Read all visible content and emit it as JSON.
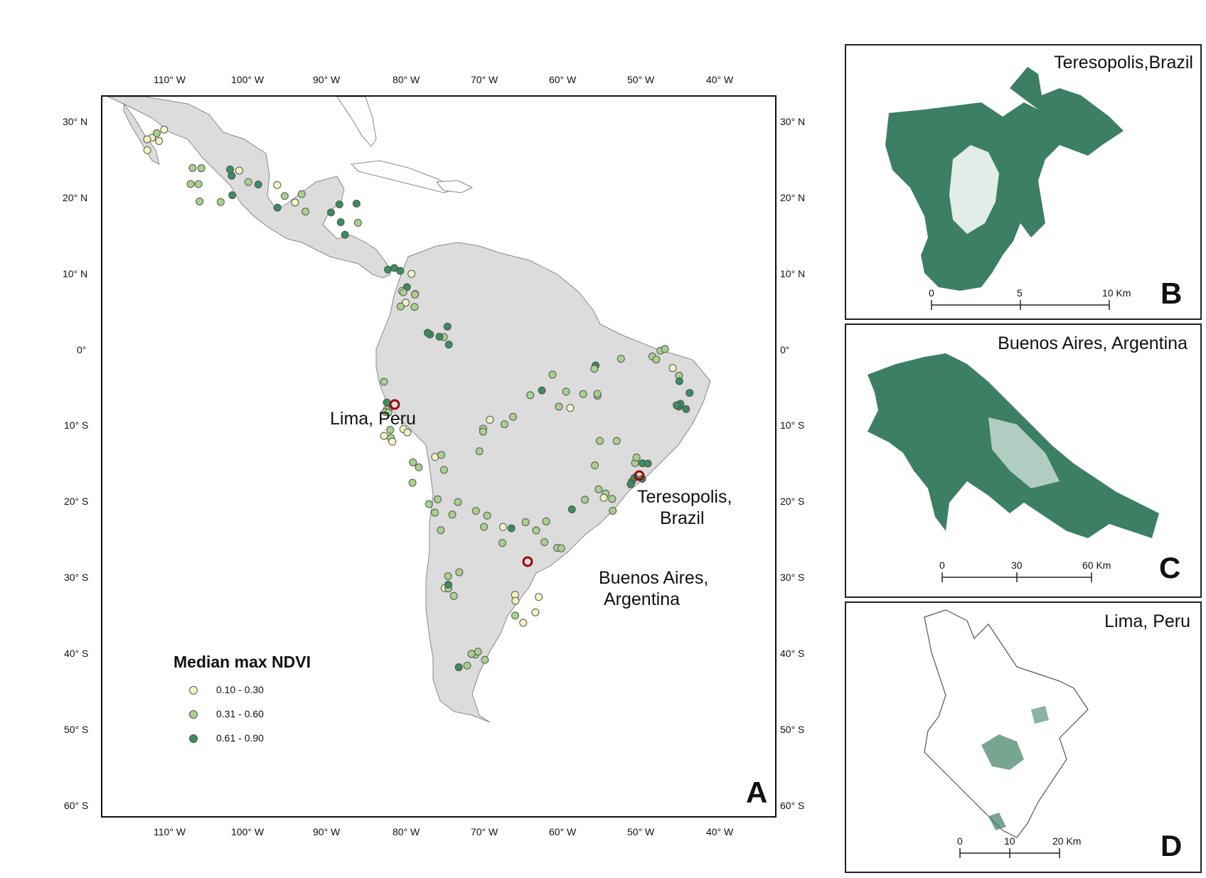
{
  "main_map": {
    "panel_letter": "A",
    "top_longitude_ticks": [
      "110° W",
      "100° W",
      "90° W",
      "80° W",
      "70° W",
      "60° W",
      "50° W",
      "40° W"
    ],
    "bottom_longitude_ticks": [
      "110° W",
      "100° W",
      "90° W",
      "80° W",
      "70° W",
      "60° W",
      "50° W",
      "40° W"
    ],
    "left_latitude_ticks": [
      "30° N",
      "20° N",
      "10° N",
      "0°",
      "10° S",
      "20° S",
      "30° S",
      "40° S",
      "50° S",
      "60° S"
    ],
    "right_latitude_ticks": [
      "30° N",
      "20° N",
      "10° N",
      "0°",
      "10° S",
      "20° S",
      "30° S",
      "40° S",
      "50° S",
      "60° S"
    ],
    "city_labels": {
      "lima": "Lima, Peru",
      "teresopolis_line1": "Teresopolis,",
      "teresopolis_line2": "Brazil",
      "buenos_aires_line1": "Buenos Aires,",
      "buenos_aires_line2": "Argentina"
    },
    "legend": {
      "title": "Median max NDVI",
      "items": [
        {
          "label": "0.10 - 0.30",
          "color": "#f4f4c4"
        },
        {
          "label": "0.31 - 0.60",
          "color": "#a9d08e"
        },
        {
          "label": "0.61 - 0.90",
          "color": "#3d8b5e"
        }
      ]
    },
    "land_color": "#dcdcdc",
    "highlight_color": "#9b0a0a"
  },
  "inset_b": {
    "panel_letter": "B",
    "title": "Teresopolis,Brazil",
    "scale": [
      "0",
      "5",
      "10 Km"
    ],
    "fill_color": "#3d7f64"
  },
  "inset_c": {
    "panel_letter": "C",
    "title": "Buenos Aires, Argentina",
    "scale": [
      "0",
      "30",
      "60 Km"
    ],
    "fill_color": "#3d7f64"
  },
  "inset_d": {
    "panel_letter": "D",
    "title": "Lima, Peru",
    "scale": [
      "0",
      "10",
      "20 Km"
    ],
    "fill_color": "#3d7f64"
  }
}
